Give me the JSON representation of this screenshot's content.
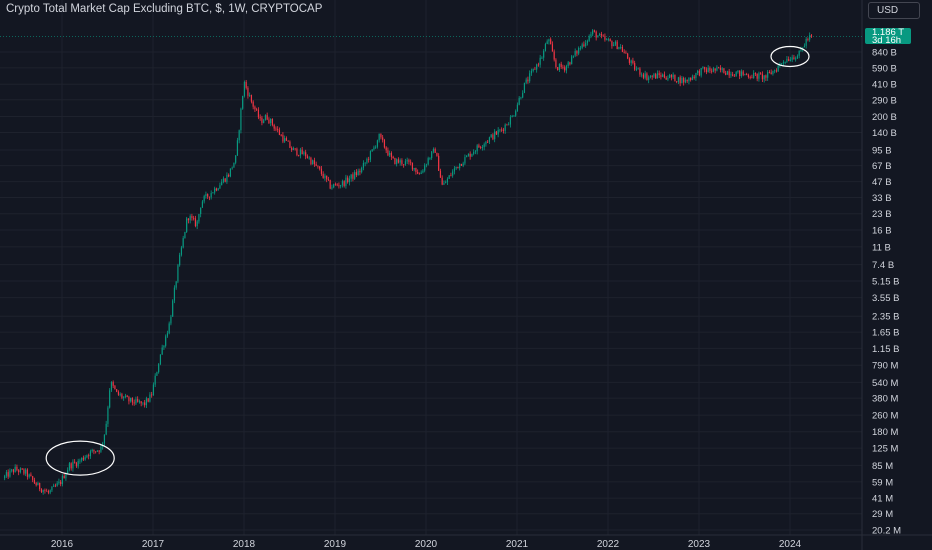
{
  "header": {
    "title": "Crypto Total Market Cap Excluding BTC, $, 1W, CRYPTOCAP",
    "currency_label": "USD"
  },
  "price_badge": {
    "value": "1.186 T",
    "countdown": "3d 16h"
  },
  "colors": {
    "background": "#131722",
    "up": "#089981",
    "down": "#f23645",
    "grid": "#1e222d",
    "text": "#d1d4dc"
  },
  "chart_data": {
    "type": "candlestick",
    "title": "Crypto Total Market Cap Excluding BTC, $, 1W, CRYPTOCAP",
    "y_scale": "log",
    "y_unit": "USD",
    "ylim": [
      20200000,
      1500000000000
    ],
    "xlim": [
      2015.37,
      2024.9
    ],
    "grid": true,
    "y_ticks": [
      {
        "label": "840 B",
        "value": 840000000000.0
      },
      {
        "label": "590 B",
        "value": 590000000000.0
      },
      {
        "label": "410 B",
        "value": 410000000000.0
      },
      {
        "label": "290 B",
        "value": 290000000000.0
      },
      {
        "label": "200 B",
        "value": 200000000000.0
      },
      {
        "label": "140 B",
        "value": 140000000000.0
      },
      {
        "label": "95 B",
        "value": 95000000000.0
      },
      {
        "label": "67 B",
        "value": 67000000000.0
      },
      {
        "label": "47 B",
        "value": 47000000000.0
      },
      {
        "label": "33 B",
        "value": 33000000000.0
      },
      {
        "label": "23 B",
        "value": 23000000000.0
      },
      {
        "label": "16 B",
        "value": 16000000000.0
      },
      {
        "label": "11 B",
        "value": 11000000000.0
      },
      {
        "label": "7.4 B",
        "value": 7400000000.0
      },
      {
        "label": "5.15 B",
        "value": 5150000000.0
      },
      {
        "label": "3.55 B",
        "value": 3550000000.0
      },
      {
        "label": "2.35 B",
        "value": 2350000000.0
      },
      {
        "label": "1.65 B",
        "value": 1650000000.0
      },
      {
        "label": "1.15 B",
        "value": 1150000000.0
      },
      {
        "label": "790 M",
        "value": 790000000.0
      },
      {
        "label": "540 M",
        "value": 540000000.0
      },
      {
        "label": "380 M",
        "value": 380000000.0
      },
      {
        "label": "260 M",
        "value": 260000000.0
      },
      {
        "label": "180 M",
        "value": 180000000.0
      },
      {
        "label": "125 M",
        "value": 125000000.0
      },
      {
        "label": "85 M",
        "value": 85000000.0
      },
      {
        "label": "59 M",
        "value": 59000000.0
      },
      {
        "label": "41 M",
        "value": 41000000.0
      },
      {
        "label": "29 M",
        "value": 29000000.0
      },
      {
        "label": "20.2 M",
        "value": 20200000.0
      }
    ],
    "x_ticks": [
      {
        "label": "2016",
        "value": 2016
      },
      {
        "label": "2017",
        "value": 2017
      },
      {
        "label": "2018",
        "value": 2018
      },
      {
        "label": "2019",
        "value": 2019
      },
      {
        "label": "2020",
        "value": 2020
      },
      {
        "label": "2021",
        "value": 2021
      },
      {
        "label": "2022",
        "value": 2022
      },
      {
        "label": "2023",
        "value": 2023
      },
      {
        "label": "2024",
        "value": 2024
      }
    ],
    "path": [
      [
        2015.37,
        64000000.0
      ],
      [
        2015.5,
        78000000.0
      ],
      [
        2015.62,
        72000000.0
      ],
      [
        2015.75,
        54000000.0
      ],
      [
        2015.87,
        46000000.0
      ],
      [
        2016.0,
        58000000.0
      ],
      [
        2016.1,
        85000000.0
      ],
      [
        2016.2,
        92000000.0
      ],
      [
        2016.3,
        110000000.0
      ],
      [
        2016.45,
        125000000.0
      ],
      [
        2016.5,
        200000000.0
      ],
      [
        2016.55,
        540000000.0
      ],
      [
        2016.62,
        420000000.0
      ],
      [
        2016.75,
        360000000.0
      ],
      [
        2016.92,
        330000000.0
      ],
      [
        2017.0,
        400000000.0
      ],
      [
        2017.1,
        1000000000.0
      ],
      [
        2017.2,
        2000000000.0
      ],
      [
        2017.3,
        7500000000.0
      ],
      [
        2017.4,
        22000000000.0
      ],
      [
        2017.5,
        18000000000.0
      ],
      [
        2017.55,
        30000000000.0
      ],
      [
        2017.7,
        40000000000.0
      ],
      [
        2017.85,
        55000000000.0
      ],
      [
        2017.93,
        80000000000.0
      ],
      [
        2018.0,
        300000000000.0
      ],
      [
        2018.02,
        430000000000.0
      ],
      [
        2018.1,
        280000000000.0
      ],
      [
        2018.2,
        180000000000.0
      ],
      [
        2018.27,
        200000000000.0
      ],
      [
        2018.4,
        140000000000.0
      ],
      [
        2018.55,
        95000000000.0
      ],
      [
        2018.7,
        85000000000.0
      ],
      [
        2018.85,
        60000000000.0
      ],
      [
        2018.97,
        42000000000.0
      ],
      [
        2019.1,
        45000000000.0
      ],
      [
        2019.3,
        60000000000.0
      ],
      [
        2019.45,
        100000000000.0
      ],
      [
        2019.5,
        130000000000.0
      ],
      [
        2019.65,
        75000000000.0
      ],
      [
        2019.85,
        70000000000.0
      ],
      [
        2019.95,
        55000000000.0
      ],
      [
        2020.05,
        80000000000.0
      ],
      [
        2020.12,
        95000000000.0
      ],
      [
        2020.2,
        42000000000.0
      ],
      [
        2020.35,
        65000000000.0
      ],
      [
        2020.55,
        95000000000.0
      ],
      [
        2020.7,
        120000000000.0
      ],
      [
        2020.85,
        150000000000.0
      ],
      [
        2020.97,
        200000000000.0
      ],
      [
        2021.1,
        400000000000.0
      ],
      [
        2021.3,
        780000000000.0
      ],
      [
        2021.36,
        1150000000000.0
      ],
      [
        2021.45,
        600000000000.0
      ],
      [
        2021.55,
        600000000000.0
      ],
      [
        2021.7,
        900000000000.0
      ],
      [
        2021.85,
        1300000000000.0
      ],
      [
        2021.98,
        1100000000000.0
      ],
      [
        2022.15,
        950000000000.0
      ],
      [
        2022.3,
        600000000000.0
      ],
      [
        2022.45,
        480000000000.0
      ],
      [
        2022.6,
        500000000000.0
      ],
      [
        2022.75,
        470000000000.0
      ],
      [
        2022.87,
        440000000000.0
      ],
      [
        2023.05,
        560000000000.0
      ],
      [
        2023.25,
        560000000000.0
      ],
      [
        2023.45,
        520000000000.0
      ],
      [
        2023.6,
        500000000000.0
      ],
      [
        2023.75,
        480000000000.0
      ],
      [
        2023.87,
        580000000000.0
      ],
      [
        2023.95,
        700000000000.0
      ],
      [
        2024.05,
        760000000000.0
      ],
      [
        2024.12,
        800000000000.0
      ],
      [
        2024.2,
        1100000000000.0
      ],
      [
        2024.25,
        1186000000000.0
      ]
    ],
    "last_value": 1186000000000.0,
    "annotations": [
      {
        "shape": "ellipse",
        "center_x": 2016.2,
        "center_y": 100000000.0
      },
      {
        "shape": "ellipse",
        "center_x": 2024.0,
        "center_y": 760000000000.0
      }
    ]
  }
}
